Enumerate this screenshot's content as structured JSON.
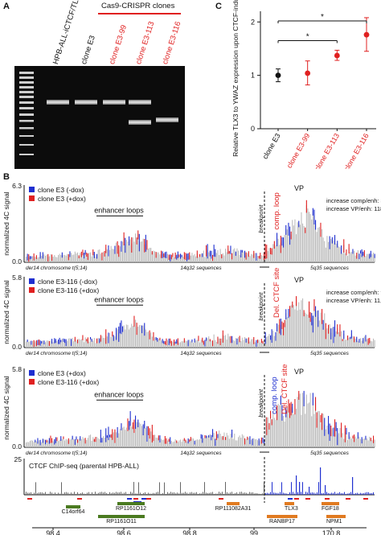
{
  "panels": {
    "A": "A",
    "B": "B",
    "C": "C"
  },
  "gel": {
    "bracket_label": "Cas9-CRISPR clones",
    "lanes": [
      "HPB-ALL-iCTCF/TLX3",
      "clone E3",
      "clone E3-99",
      "clone E3-113",
      "clone E3-116"
    ],
    "lane_colors": [
      "#111111",
      "#111111",
      "#e02020",
      "#e02020",
      "#e02020"
    ]
  },
  "chart_data": [
    {
      "type": "scatter",
      "id": "C",
      "title": "",
      "ylabel": "Relative TLX3 to YWAZ expression upon CTCF-induction",
      "ylim": [
        0,
        2.2
      ],
      "yticks": [
        0,
        1,
        2
      ],
      "categories": [
        "clone E3",
        "clone E3-99",
        "clone E3-113",
        "clone E3-116"
      ],
      "category_colors": [
        "#111111",
        "#e02020",
        "#e02020",
        "#e02020"
      ],
      "values": [
        1.0,
        1.04,
        1.37,
        1.76
      ],
      "err_low": [
        0.88,
        0.82,
        1.28,
        1.45
      ],
      "err_high": [
        1.12,
        1.27,
        1.47,
        2.08
      ],
      "significance": [
        {
          "from": 0,
          "to": 2,
          "label": "*"
        },
        {
          "from": 0,
          "to": 3,
          "label": "*"
        }
      ]
    },
    {
      "type": "area",
      "id": "B1",
      "ylabel": "normalized 4C signal",
      "ylim": [
        0,
        6.3
      ],
      "yticks": [
        "6.3",
        "0.0"
      ],
      "legend": [
        {
          "name": "clone E3 (-dox)",
          "color": "#1f2fd0"
        },
        {
          "name": "clone E3 (+dox)",
          "color": "#e02020"
        }
      ],
      "annotations": {
        "enhancer": "enhancer loops",
        "breakpoint": "breakpoint",
        "red_label": "comp. loop",
        "vp": "VP",
        "stats": [
          "increase comp/enh: 38,7%",
          "increase VP/enh:  118,5%"
        ],
        "bottom_left": "der14 chromosome t(5;14)",
        "bottom_mid": "14q32 sequences",
        "bottom_right": "5q35 sequences"
      }
    },
    {
      "type": "area",
      "id": "B2",
      "ylabel": "normalized 4C signal",
      "ylim": [
        0,
        5.8
      ],
      "yticks": [
        "5.8",
        "0.0"
      ],
      "legend": [
        {
          "name": "clone E3-116 (-dox)",
          "color": "#1f2fd0"
        },
        {
          "name": "clone E3-116 (+dox)",
          "color": "#e02020"
        }
      ],
      "annotations": {
        "enhancer": "enhancer loops",
        "breakpoint": "breakpoint",
        "red_label": "Del. CTCF site",
        "vp": "VP",
        "stats": [
          "increase comp/enh:  9,7%",
          "increase VP/enh:  11,2%"
        ],
        "bottom_left": "der14 chromosome t(5;14)",
        "bottom_mid": "14q32 sequences",
        "bottom_right": "5q35 sequences"
      }
    },
    {
      "type": "area",
      "id": "B3",
      "ylabel": "normalized 4C signal",
      "ylim": [
        0,
        5.8
      ],
      "yticks": [
        "5.8",
        "0.0"
      ],
      "legend": [
        {
          "name": "clone E3 (+dox)",
          "color": "#1f2fd0"
        },
        {
          "name": "clone E3-116 (+dox)",
          "color": "#e02020"
        }
      ],
      "annotations": {
        "enhancer": "enhancer loops",
        "breakpoint": "breakpoint",
        "blue_label": "comp. loop",
        "red_label": "Del. CTCF site",
        "vp": "VP",
        "bottom_left": "der14 chromosome t(5;14)",
        "bottom_mid": "14q32 sequences",
        "bottom_right": "5q35 sequences"
      }
    },
    {
      "type": "bar",
      "id": "B4",
      "label": "CTCF ChIP-seq (parental HPB-ALL)",
      "ytick": "25",
      "genes": [
        {
          "name": "C14orf64",
          "color": "#4a7a20"
        },
        {
          "name": "RP1161O12",
          "color": "#4a7a20"
        },
        {
          "name": "RP1161O11",
          "color": "#4a7a20"
        },
        {
          "name": "RP111082A31",
          "color": "#e07a20"
        },
        {
          "name": "RANBP17",
          "color": "#e07a20"
        },
        {
          "name": "TLX3",
          "color": "#e07a20"
        },
        {
          "name": "FGF18",
          "color": "#e07a20"
        },
        {
          "name": "NPM1",
          "color": "#e07a20"
        }
      ],
      "axis_ticks": [
        "98.4",
        "98.6",
        "98.8",
        "99",
        "170.8"
      ]
    }
  ]
}
